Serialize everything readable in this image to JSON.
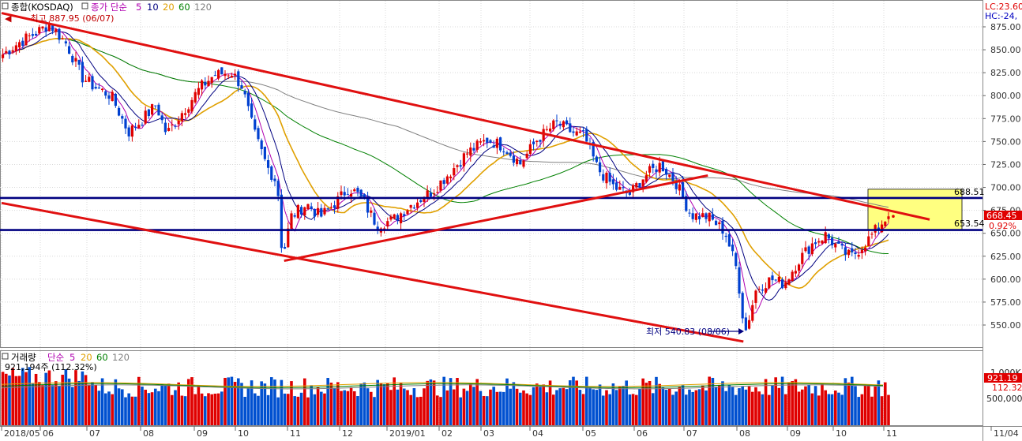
{
  "price_panel": {
    "legend": {
      "name": "종합(KOSDAQ)",
      "ma_label": "종가 단순",
      "ma_periods": [
        "5",
        "10",
        "20",
        "60",
        "120"
      ],
      "ma_colors": [
        "#b000b0",
        "#000080",
        "#e0a000",
        "#008000",
        "#808080"
      ]
    },
    "high_note": "최고 887.95 (06/07)",
    "low_note": "최저 540.83 (08/06)",
    "right_top": [
      "LC:23.60",
      "HC:-24,"
    ],
    "current_price": "668.45",
    "change_pct": "0.92%",
    "box_top_label": "688.51",
    "box_bottom_label": "653.54"
  },
  "volume_panel": {
    "legend": {
      "name": "거래량",
      "ma_label": "단순",
      "ma_periods": [
        "5",
        "20",
        "60",
        "120"
      ],
      "ma_colors": [
        "#b000b0",
        "#e0a000",
        "#008000",
        "#808080"
      ]
    },
    "value_note": "921,194주 (112.32%)",
    "current_volume": "921.19",
    "current_pct": "112.32",
    "axis_ticks": [
      "1,000K",
      "500,000"
    ]
  },
  "x_labels": [
    "2018/05",
    "06",
    "07",
    "08",
    "09",
    "10",
    "11",
    "12",
    "2019/01",
    "02",
    "03",
    "04",
    "05",
    "06",
    "07",
    "08",
    "09",
    "10",
    "11",
    "11/04"
  ],
  "chart_data": {
    "type": "candlestick",
    "title": "종합(KOSDAQ)",
    "ylim": [
      528,
      895
    ],
    "y_ticks": [
      550,
      575,
      600,
      625,
      650,
      675,
      700,
      725,
      750,
      775,
      800,
      825,
      850,
      875
    ],
    "horizontal_levels": [
      688.51,
      653.54
    ],
    "highlight_box": {
      "from": 653.54,
      "to": 698,
      "color": "#ffff80"
    },
    "close_path": [
      {
        "date": "2018-05-02",
        "close": 845
      },
      {
        "date": "2018-05-15",
        "close": 858
      },
      {
        "date": "2018-05-28",
        "close": 868
      },
      {
        "date": "2018-06-07",
        "close": 878
      },
      {
        "date": "2018-06-18",
        "close": 856
      },
      {
        "date": "2018-06-28",
        "close": 820
      },
      {
        "date": "2018-07-05",
        "close": 810
      },
      {
        "date": "2018-07-15",
        "close": 800
      },
      {
        "date": "2018-07-25",
        "close": 760
      },
      {
        "date": "2018-08-01",
        "close": 772
      },
      {
        "date": "2018-08-10",
        "close": 790
      },
      {
        "date": "2018-08-16",
        "close": 758
      },
      {
        "date": "2018-08-25",
        "close": 782
      },
      {
        "date": "2018-09-05",
        "close": 808
      },
      {
        "date": "2018-09-15",
        "close": 822
      },
      {
        "date": "2018-09-28",
        "close": 826
      },
      {
        "date": "2018-10-05",
        "close": 810
      },
      {
        "date": "2018-10-12",
        "close": 760
      },
      {
        "date": "2018-10-20",
        "close": 722
      },
      {
        "date": "2018-10-26",
        "close": 705
      },
      {
        "date": "2018-10-29",
        "close": 622
      },
      {
        "date": "2018-11-03",
        "close": 668
      },
      {
        "date": "2018-11-12",
        "close": 682
      },
      {
        "date": "2018-11-20",
        "close": 668
      },
      {
        "date": "2018-12-01",
        "close": 688
      },
      {
        "date": "2018-12-07",
        "close": 700
      },
      {
        "date": "2018-12-15",
        "close": 690
      },
      {
        "date": "2018-12-26",
        "close": 660
      },
      {
        "date": "2019-01-05",
        "close": 664
      },
      {
        "date": "2019-01-15",
        "close": 680
      },
      {
        "date": "2019-01-28",
        "close": 696
      },
      {
        "date": "2019-02-08",
        "close": 716
      },
      {
        "date": "2019-02-20",
        "close": 738
      },
      {
        "date": "2019-03-05",
        "close": 752
      },
      {
        "date": "2019-03-15",
        "close": 745
      },
      {
        "date": "2019-03-26",
        "close": 726
      },
      {
        "date": "2019-04-05",
        "close": 752
      },
      {
        "date": "2019-04-16",
        "close": 770
      },
      {
        "date": "2019-04-25",
        "close": 760
      },
      {
        "date": "2019-05-02",
        "close": 755
      },
      {
        "date": "2019-05-10",
        "close": 720
      },
      {
        "date": "2019-05-20",
        "close": 700
      },
      {
        "date": "2019-05-29",
        "close": 692
      },
      {
        "date": "2019-06-07",
        "close": 712
      },
      {
        "date": "2019-06-17",
        "close": 725
      },
      {
        "date": "2019-06-26",
        "close": 706
      },
      {
        "date": "2019-07-05",
        "close": 670
      },
      {
        "date": "2019-07-15",
        "close": 668
      },
      {
        "date": "2019-07-25",
        "close": 652
      },
      {
        "date": "2019-08-01",
        "close": 610
      },
      {
        "date": "2019-08-06",
        "close": 541
      },
      {
        "date": "2019-08-13",
        "close": 590
      },
      {
        "date": "2019-08-22",
        "close": 600
      },
      {
        "date": "2019-08-30",
        "close": 595
      },
      {
        "date": "2019-09-08",
        "close": 620
      },
      {
        "date": "2019-09-18",
        "close": 640
      },
      {
        "date": "2019-09-26",
        "close": 648
      },
      {
        "date": "2019-10-05",
        "close": 632
      },
      {
        "date": "2019-10-12",
        "close": 624
      },
      {
        "date": "2019-10-22",
        "close": 642
      },
      {
        "date": "2019-10-31",
        "close": 662
      },
      {
        "date": "2019-11-04",
        "close": 668.45
      }
    ],
    "volume_ylim": [
      0,
      1400
    ],
    "volume_ticks": [
      500,
      1000
    ],
    "volume_note_unit": "K"
  }
}
